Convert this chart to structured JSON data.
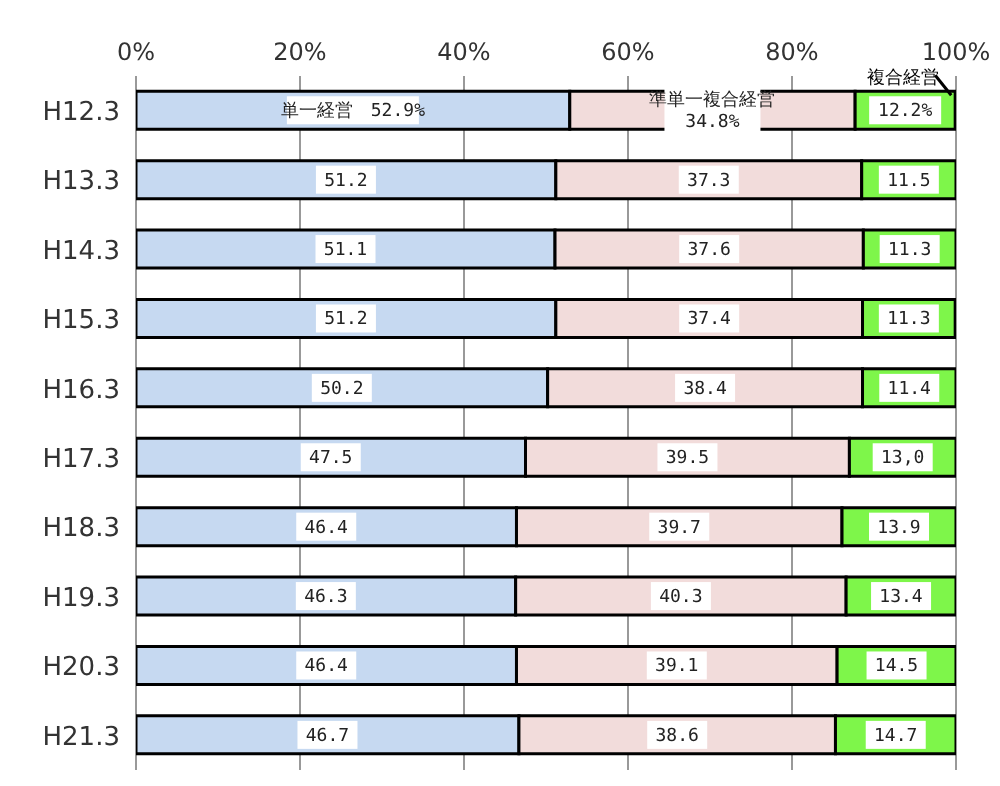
{
  "chart_data": {
    "type": "bar",
    "orientation": "horizontal",
    "stacked": true,
    "categories": [
      "H12.3",
      "H13.3",
      "H14.3",
      "H15.3",
      "H16.3",
      "H17.3",
      "H18.3",
      "H19.3",
      "H20.3",
      "H21.3"
    ],
    "series": [
      {
        "name": "単一経営",
        "color": "#c6d9f1",
        "values": [
          52.9,
          51.2,
          51.1,
          51.2,
          50.2,
          47.5,
          46.4,
          46.3,
          46.4,
          46.7
        ],
        "value_labels": [
          "52.9%",
          "51.2",
          "51.1",
          "51.2",
          "50.2",
          "47.5",
          "46.4",
          "46.3",
          "46.4",
          "46.7"
        ]
      },
      {
        "name": "準単一複合経営",
        "color": "#f2dcdb",
        "values": [
          34.8,
          37.3,
          37.6,
          37.4,
          38.4,
          39.5,
          39.7,
          40.3,
          39.1,
          38.6
        ],
        "value_labels": [
          "34.8%",
          "37.3",
          "37.6",
          "37.4",
          "38.4",
          "39.5",
          "39.7",
          "40.3",
          "39.1",
          "38.6"
        ]
      },
      {
        "name": "複合経営",
        "color": "#7ef64a",
        "values": [
          12.2,
          11.5,
          11.3,
          11.3,
          11.4,
          13.0,
          13.9,
          13.4,
          14.5,
          14.7
        ],
        "value_labels": [
          "12.2%",
          "11.5",
          "11.3",
          "11.3",
          "11.4",
          "13,0",
          "13.9",
          "13.4",
          "14.5",
          "14.7"
        ]
      }
    ],
    "xlim": [
      0,
      100
    ],
    "xticks": [
      {
        "value": 0,
        "label": "0%"
      },
      {
        "value": 20,
        "label": "20%"
      },
      {
        "value": 40,
        "label": "40%"
      },
      {
        "value": 60,
        "label": "60%"
      },
      {
        "value": 80,
        "label": "80%"
      },
      {
        "value": 100,
        "label": "100%"
      }
    ],
    "grid": "x"
  }
}
